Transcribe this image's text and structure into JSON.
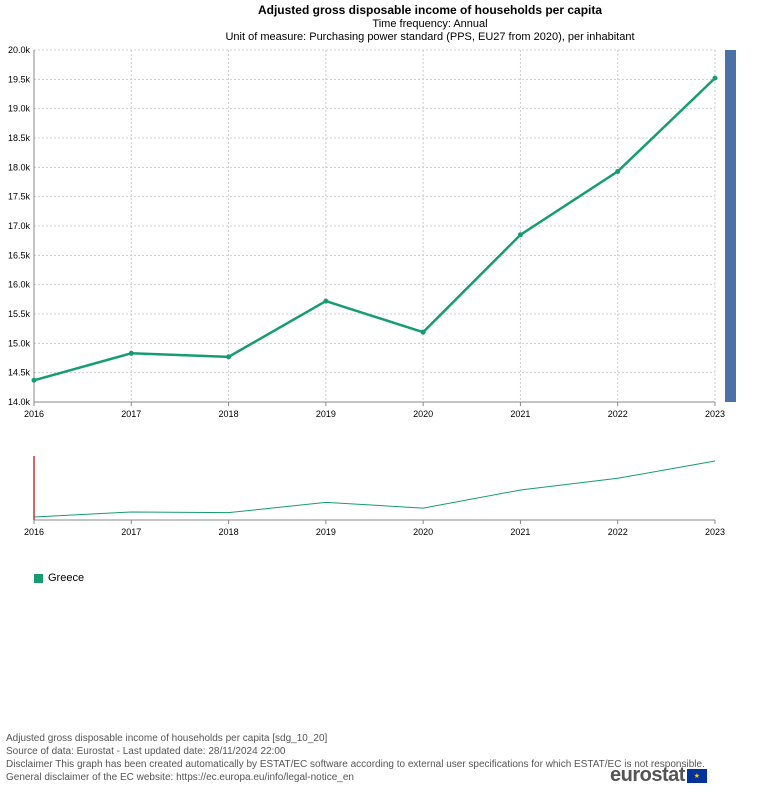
{
  "header": {
    "title": "Adjusted gross disposable income of households per capita",
    "subtitle_frequency": "Time frequency:  Annual",
    "subtitle_unit": "Unit of measure:  Purchasing power standard (PPS, EU27 from 2020), per inhabitant"
  },
  "chart_data": {
    "type": "line",
    "title": "Adjusted gross disposable income of households per capita",
    "xlabel": "",
    "ylabel": "",
    "x": [
      "2016",
      "2017",
      "2018",
      "2019",
      "2020",
      "2021",
      "2022",
      "2023"
    ],
    "ylim": [
      14000,
      20000
    ],
    "yticks": [
      "14.0k",
      "14.5k",
      "15.0k",
      "15.5k",
      "16.0k",
      "16.5k",
      "17.0k",
      "17.5k",
      "18.0k",
      "18.5k",
      "19.0k",
      "19.5k",
      "20.0k"
    ],
    "grid": true,
    "legend_position": "bottom-left",
    "series": [
      {
        "name": "Greece",
        "values": [
          14370,
          14830,
          14770,
          15720,
          15190,
          16850,
          17930,
          19520
        ],
        "color": "#169c72"
      }
    ],
    "navigator": {
      "present": true,
      "color": "#169c72",
      "handle_color": "#c0392b"
    },
    "scrollbar_color": "#4a72a8"
  },
  "legend": {
    "items": [
      {
        "label": "Greece",
        "color": "#169c72"
      }
    ]
  },
  "footer": {
    "dataset": "Adjusted gross disposable income of households per capita [sdg_10_20]",
    "source": "Source of data: Eurostat - Last updated date: 28/11/2024 22:00",
    "disclaimer": "Disclaimer This graph has been created automatically by ESTAT/EC software according to external user specifications for which ESTAT/EC is not responsible. General disclaimer of the EC website: https://ec.europa.eu/info/legal-notice_en",
    "general": "General disclaimer of the EC website: https://ec.europa.eu/info/legal-notice_en"
  },
  "logo": {
    "text": "eurostat",
    "icon": "eu-flag-icon"
  }
}
